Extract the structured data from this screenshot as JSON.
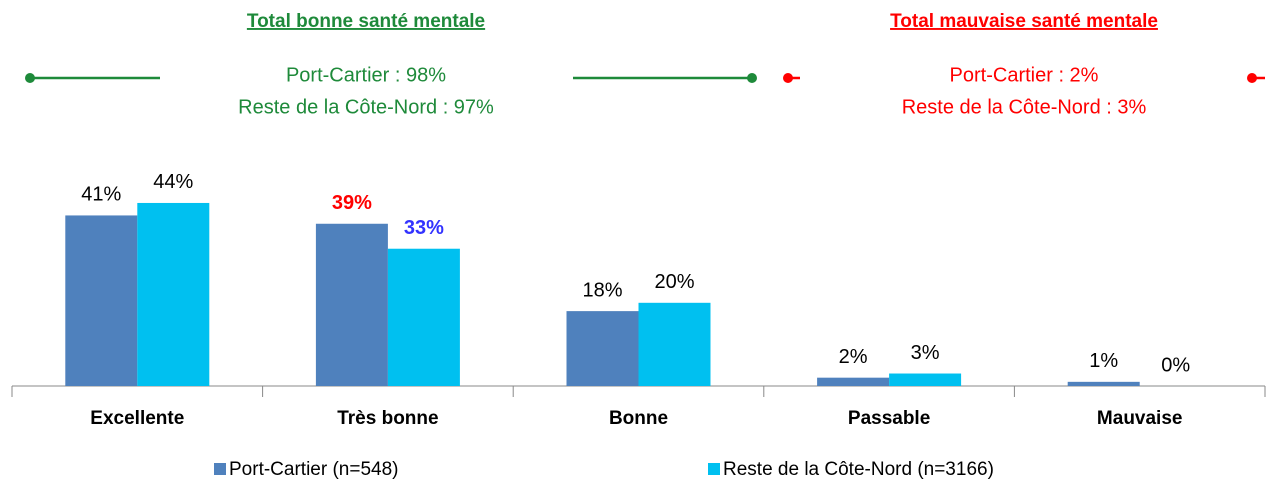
{
  "chart_data": {
    "type": "bar",
    "annotations": [
      {
        "title": "Total bonne santé mentale",
        "lines": [
          "Port-Cartier : 98%",
          "Reste de la Côte-Nord : 97%"
        ],
        "color": "#1e8a3a"
      },
      {
        "title": "Total mauvaise santé mentale",
        "lines": [
          "Port-Cartier : 2%",
          "Reste de la Côte-Nord : 3%"
        ],
        "color": "#ff0000"
      }
    ],
    "categories": [
      "Excellente",
      "Très bonne",
      "Bonne",
      "Passable",
      "Mauvaise"
    ],
    "series": [
      {
        "name": "Port-Cartier (n=548)",
        "color": "#4f81bd",
        "values": [
          41,
          39,
          18,
          2,
          1
        ],
        "value_labels": [
          "41%",
          "39%",
          "18%",
          "2%",
          "1%"
        ],
        "label_colors": [
          "#000000",
          "#ff0000",
          "#000000",
          "#000000",
          "#000000"
        ],
        "label_bold": [
          false,
          true,
          false,
          false,
          false
        ]
      },
      {
        "name": "Reste de la Côte-Nord (n=3166)",
        "color": "#00c0f0",
        "values": [
          44,
          33,
          20,
          3,
          0
        ],
        "value_labels": [
          "44%",
          "33%",
          "20%",
          "3%",
          "0%"
        ],
        "label_colors": [
          "#000000",
          "#3333ff",
          "#000000",
          "#000000",
          "#000000"
        ],
        "label_bold": [
          false,
          true,
          false,
          false,
          false
        ]
      }
    ],
    "ylim": [
      0,
      50
    ]
  }
}
